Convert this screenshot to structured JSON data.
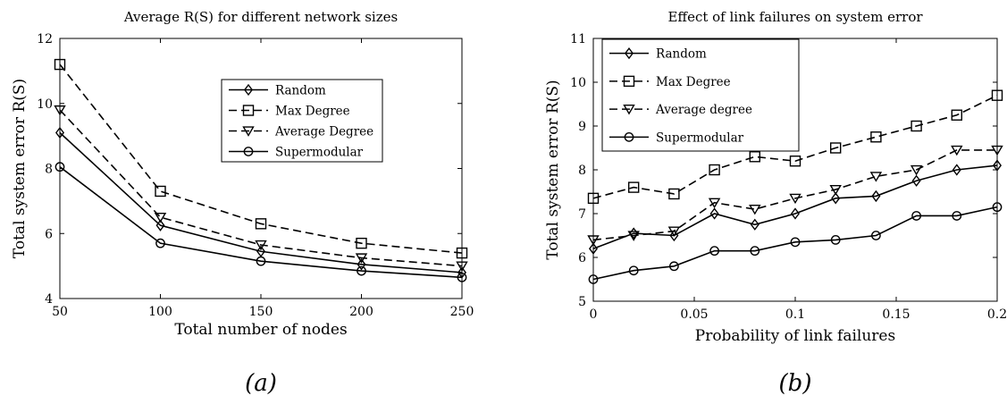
{
  "chart_data": [
    {
      "type": "line",
      "title": "Average R(S) for different network sizes",
      "xlabel": "Total number of nodes",
      "ylabel": "Total system error  R(S)",
      "caption": "(a)",
      "x": [
        50,
        100,
        150,
        200,
        250
      ],
      "xlim": [
        50,
        250
      ],
      "ylim": [
        4,
        12
      ],
      "xticks": [
        "50",
        "100",
        "150",
        "200",
        "250"
      ],
      "yticks": [
        "4",
        "6",
        "8",
        "10",
        "12"
      ],
      "legend_position": "center-right",
      "series": [
        {
          "name": "Random",
          "marker": "diamond",
          "dash": "solid",
          "values": [
            9.1,
            6.25,
            5.45,
            5.05,
            4.8
          ]
        },
        {
          "name": "Max Degree",
          "marker": "square",
          "dash": "dashed",
          "values": [
            11.2,
            7.3,
            6.3,
            5.7,
            5.4
          ]
        },
        {
          "name": "Average Degree",
          "marker": "triangle-down",
          "dash": "dashed",
          "values": [
            9.8,
            6.5,
            5.65,
            5.25,
            5.0
          ]
        },
        {
          "name": "Supermodular",
          "marker": "circle",
          "dash": "solid",
          "values": [
            8.05,
            5.7,
            5.15,
            4.85,
            4.65
          ]
        }
      ]
    },
    {
      "type": "line",
      "title": "Effect of link failures on system error",
      "xlabel": "Probability of link failures",
      "ylabel": "Total system error R(S)",
      "caption": "(b)",
      "x": [
        0,
        0.02,
        0.04,
        0.06,
        0.08,
        0.1,
        0.12,
        0.14,
        0.16,
        0.18,
        0.2
      ],
      "xlim": [
        0,
        0.2
      ],
      "ylim": [
        5,
        11
      ],
      "xticks": [
        "0",
        "0.05",
        "0.1",
        "0.15",
        "0.2"
      ],
      "xtick_values": [
        0,
        0.05,
        0.1,
        0.15,
        0.2
      ],
      "yticks": [
        "5",
        "6",
        "7",
        "8",
        "9",
        "10",
        "11"
      ],
      "legend_position": "top-left",
      "series": [
        {
          "name": "Random",
          "marker": "diamond",
          "dash": "solid",
          "values": [
            6.2,
            6.55,
            6.5,
            7.0,
            6.75,
            7.0,
            7.35,
            7.4,
            7.75,
            8.0,
            8.1
          ]
        },
        {
          "name": "Max Degree",
          "marker": "square",
          "dash": "dashed",
          "values": [
            7.35,
            7.6,
            7.45,
            8.0,
            8.3,
            8.2,
            8.5,
            8.75,
            9.0,
            9.25,
            9.7
          ]
        },
        {
          "name": "Average degree",
          "marker": "triangle-down",
          "dash": "dashed",
          "values": [
            6.4,
            6.5,
            6.6,
            7.25,
            7.1,
            7.35,
            7.55,
            7.85,
            8.0,
            8.45,
            8.45
          ]
        },
        {
          "name": "Supermodular",
          "marker": "circle",
          "dash": "solid",
          "values": [
            5.5,
            5.7,
            5.8,
            6.15,
            6.15,
            6.35,
            6.4,
            6.5,
            6.95,
            6.95,
            7.15
          ]
        }
      ]
    }
  ]
}
